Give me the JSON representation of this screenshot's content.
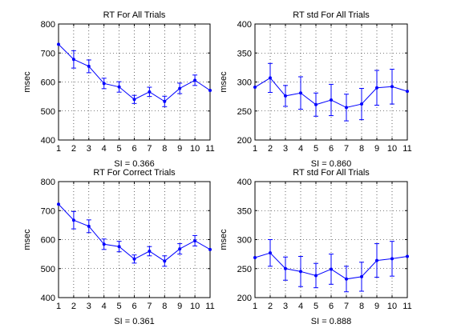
{
  "figure": {
    "background": "#ffffff",
    "series_color": "#0000ff"
  },
  "chart_data": [
    {
      "type": "line",
      "title": "RT For All Trials",
      "xlabel": "SI = 0.366",
      "ylabel": "msec",
      "xlim": [
        1,
        11
      ],
      "ylim": [
        400,
        800
      ],
      "xticks": [
        1,
        2,
        3,
        4,
        5,
        6,
        7,
        8,
        9,
        10,
        11
      ],
      "yticks": [
        400,
        500,
        600,
        700,
        800
      ],
      "grid": true,
      "series": [
        {
          "x": [
            1,
            2,
            3,
            4,
            5,
            6,
            7,
            8,
            9,
            10,
            11
          ],
          "y": [
            730,
            678,
            654,
            595,
            583,
            540,
            566,
            533,
            578,
            606,
            571
          ],
          "err": [
            0,
            30,
            22,
            18,
            18,
            14,
            16,
            18,
            18,
            18,
            0
          ]
        }
      ]
    },
    {
      "type": "line",
      "title": "RT std For All Trials",
      "xlabel": "SI = 0.860",
      "ylabel": "msec",
      "xlim": [
        1,
        11
      ],
      "ylim": [
        200,
        400
      ],
      "xticks": [
        1,
        2,
        3,
        4,
        5,
        6,
        7,
        8,
        9,
        10,
        11
      ],
      "yticks": [
        200,
        250,
        300,
        350,
        400
      ],
      "grid": true,
      "series": [
        {
          "x": [
            1,
            2,
            3,
            4,
            5,
            6,
            7,
            8,
            9,
            10,
            11
          ],
          "y": [
            291,
            307,
            276,
            281,
            261,
            269,
            256,
            262,
            290,
            292,
            284
          ],
          "err": [
            0,
            25,
            18,
            28,
            20,
            27,
            23,
            27,
            30,
            30,
            0
          ]
        }
      ]
    },
    {
      "type": "line",
      "title": "RT For Correct Trials",
      "xlabel": "SI = 0.361",
      "ylabel": "msec",
      "xlim": [
        1,
        11
      ],
      "ylim": [
        400,
        800
      ],
      "xticks": [
        1,
        2,
        3,
        4,
        5,
        6,
        7,
        8,
        9,
        10,
        11
      ],
      "yticks": [
        400,
        500,
        600,
        700,
        800
      ],
      "grid": true,
      "series": [
        {
          "x": [
            1,
            2,
            3,
            4,
            5,
            6,
            7,
            8,
            9,
            10,
            11
          ],
          "y": [
            722,
            667,
            646,
            584,
            576,
            533,
            560,
            526,
            568,
            596,
            566
          ],
          "err": [
            0,
            30,
            22,
            18,
            18,
            14,
            16,
            18,
            18,
            18,
            0
          ]
        }
      ]
    },
    {
      "type": "line",
      "title": "RT std For All Trials",
      "xlabel": "SI = 0.888",
      "ylabel": "msec",
      "xlim": [
        1,
        11
      ],
      "ylim": [
        200,
        400
      ],
      "xticks": [
        1,
        2,
        3,
        4,
        5,
        6,
        7,
        8,
        9,
        10,
        11
      ],
      "yticks": [
        200,
        250,
        300,
        350,
        400
      ],
      "grid": true,
      "series": [
        {
          "x": [
            1,
            2,
            3,
            4,
            5,
            6,
            7,
            8,
            9,
            10,
            11
          ],
          "y": [
            269,
            277,
            250,
            245,
            238,
            249,
            232,
            236,
            264,
            267,
            271
          ],
          "err": [
            0,
            23,
            20,
            26,
            21,
            26,
            22,
            25,
            29,
            30,
            0
          ]
        }
      ]
    }
  ]
}
